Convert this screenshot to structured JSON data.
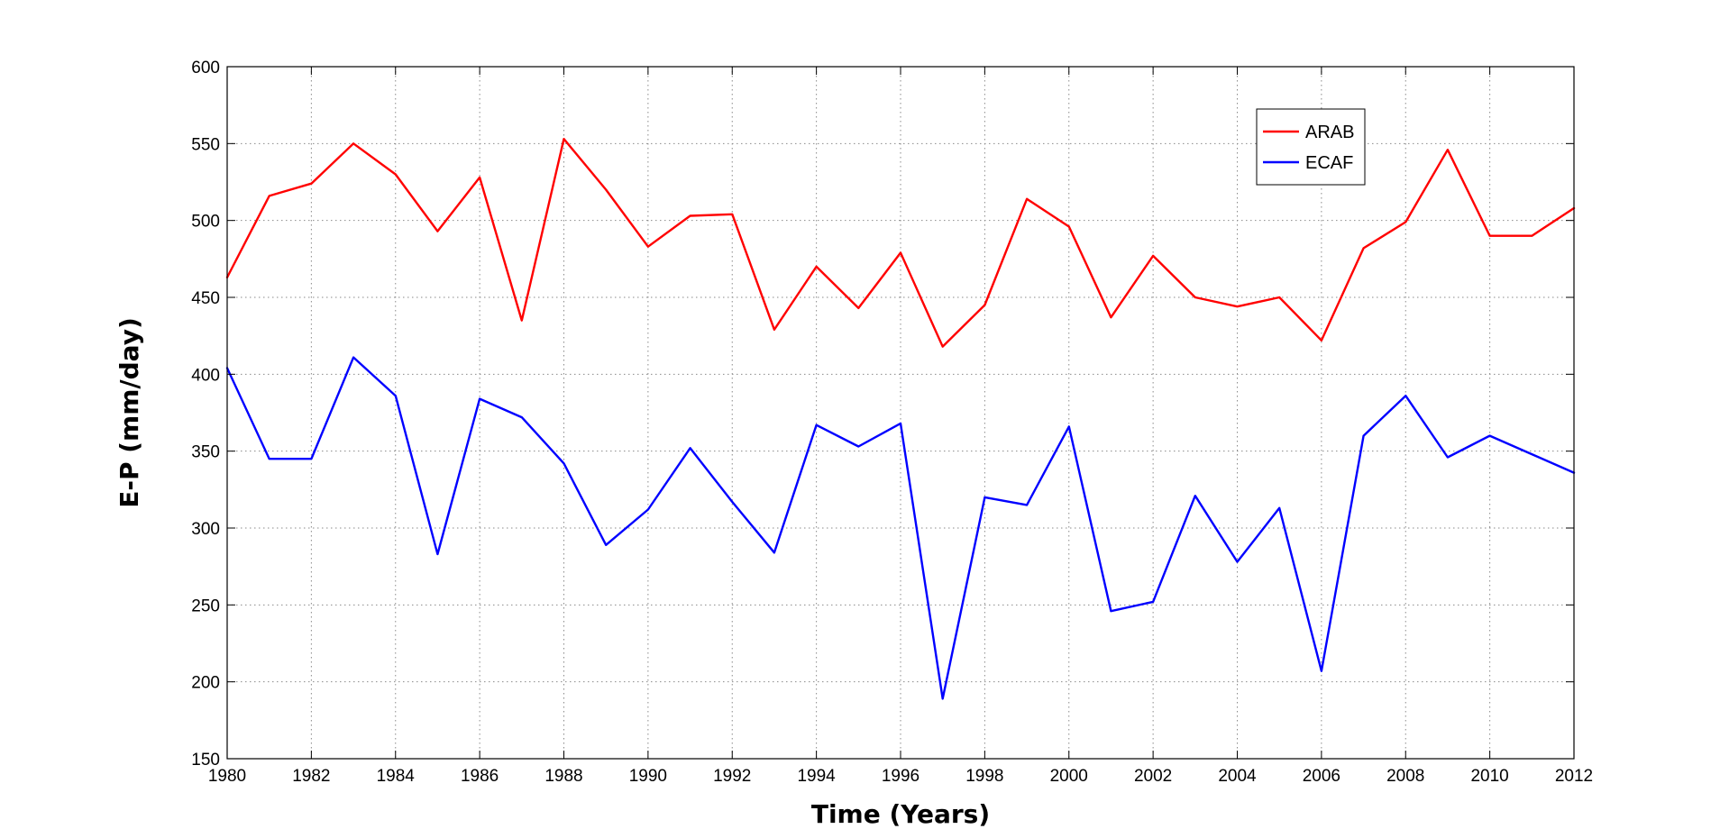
{
  "chart_data": {
    "type": "line",
    "xlabel": "Time (Years)",
    "ylabel": "E-P (mm/day)",
    "xlim": [
      1980,
      2012
    ],
    "ylim": [
      150,
      600
    ],
    "xticks": [
      1980,
      1982,
      1984,
      1986,
      1988,
      1990,
      1992,
      1994,
      1996,
      1998,
      2000,
      2002,
      2004,
      2006,
      2008,
      2010,
      2012
    ],
    "yticks": [
      150,
      200,
      250,
      300,
      350,
      400,
      450,
      500,
      550,
      600
    ],
    "grid": true,
    "legend_position": "top-right",
    "x": [
      1980,
      1981,
      1982,
      1983,
      1984,
      1985,
      1986,
      1987,
      1988,
      1989,
      1990,
      1991,
      1992,
      1993,
      1994,
      1995,
      1996,
      1997,
      1998,
      1999,
      2000,
      2001,
      2002,
      2003,
      2004,
      2005,
      2006,
      2007,
      2008,
      2009,
      2010,
      2011,
      2012
    ],
    "series": [
      {
        "name": "ARAB",
        "color": "#ff0000",
        "values": [
          463,
          516,
          524,
          550,
          530,
          493,
          528,
          435,
          553,
          520,
          483,
          503,
          504,
          429,
          470,
          443,
          479,
          418,
          445,
          514,
          496,
          437,
          477,
          450,
          444,
          450,
          422,
          482,
          499,
          546,
          490,
          490,
          508
        ]
      },
      {
        "name": "ECAF",
        "color": "#0000ff",
        "values": [
          404,
          345,
          345,
          411,
          386,
          283,
          384,
          372,
          342,
          289,
          312,
          352,
          317,
          284,
          367,
          353,
          368,
          189,
          320,
          315,
          366,
          246,
          252,
          321,
          278,
          313,
          207,
          360,
          386,
          346,
          360,
          348,
          336
        ]
      }
    ]
  }
}
